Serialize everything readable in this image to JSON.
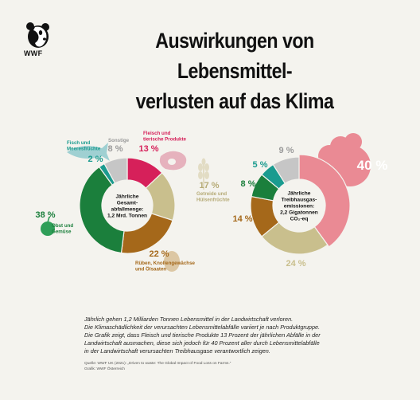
{
  "logo": {
    "text": "WWF"
  },
  "title": {
    "line1": "Auswirkungen von Lebensmittel-",
    "line2": "verlusten auf das Klima"
  },
  "colors": {
    "meat": "#d6205a",
    "grain": "#c9bf8d",
    "roots": "#a5681a",
    "fruit": "#1b7f3c",
    "fish": "#1a9b8f",
    "other": "#c6c6c6",
    "emissions_big": "#ea8a94",
    "background": "#f4f3ee"
  },
  "icons": [
    "panda-logo-icon",
    "fish-icon",
    "steak-icon",
    "wheat-icon",
    "apple-icon",
    "potato-icon",
    "emission-cloud-icon"
  ],
  "chart_data": [
    {
      "type": "pie",
      "center_label": "Jährliche Gesamt-abfallmenge: 1,2 Mrd. Tonnen",
      "center_lines": [
        "Jährliche",
        "Gesamt-",
        "abfallmenge:",
        "1,2 Mrd. Tonnen"
      ],
      "slices": [
        {
          "key": "meat",
          "name": "Fleisch und tierische Produkte",
          "name_lines": [
            "Fleisch und",
            "tierische Produkte"
          ],
          "value": 13,
          "label": "13 %"
        },
        {
          "key": "grain",
          "name": "Getreide und Hülsenfrüchte",
          "name_lines": [
            "Getreide und",
            "Hülsenfrüchte"
          ],
          "value": 17,
          "label": "17 %"
        },
        {
          "key": "roots",
          "name": "Rüben, Knollengewächse und Ölsaaten",
          "name_lines": [
            "Rüben, Knollengewächse",
            "und Ölsaaten"
          ],
          "value": 22,
          "label": "22 %"
        },
        {
          "key": "fruit",
          "name": "Obst und Gemüse",
          "name_lines": [
            "Obst und",
            "Gemüse"
          ],
          "value": 38,
          "label": "38 %"
        },
        {
          "key": "fish",
          "name": "Fisch und Meeresfrüchte",
          "name_lines": [
            "Fisch und",
            "Meeresfrüchte"
          ],
          "value": 2,
          "label": "2 %"
        },
        {
          "key": "other",
          "name": "Sonstige",
          "name_lines": [
            "Sonstige"
          ],
          "value": 8,
          "label": "8 %"
        }
      ]
    },
    {
      "type": "pie",
      "center_label": "Jährliche Treibhausgas-emissionen: 2,2 Gigatonnen CO₂-eq",
      "center_lines": [
        "Jährliche",
        "Treibhausgas-",
        "emissionen:",
        "2,2 Gigatonnen",
        "CO₂-eq"
      ],
      "slices": [
        {
          "key": "meat",
          "value": 40,
          "label": "40 %"
        },
        {
          "key": "grain",
          "value": 24,
          "label": "24 %"
        },
        {
          "key": "roots",
          "value": 14,
          "label": "14 %"
        },
        {
          "key": "fruit",
          "value": 8,
          "label": "8 %"
        },
        {
          "key": "fish",
          "value": 5,
          "label": "5 %"
        },
        {
          "key": "other",
          "value": 9,
          "label": "9 %"
        }
      ]
    }
  ],
  "description": {
    "line1": "Jährlich gehen 1,2 Milliarden Tonnen Lebensmittel in der Landwirtschaft verloren.",
    "line2": "Die Klimaschädlichkeit der verursachten Lebensmittelabfälle variiert je nach Produktgruppe.",
    "line3": "Die Grafik zeigt, dass Fleisch und tierische Produkte 13 Prozent  der jährlichen Abfälle in der",
    "line4": "Landwirtschaft ausmachen, diese sich jedoch für 40 Prozent aller durch Lebensmittelabfälle",
    "line5": "in der Landwirtschaft verursachten Treibhausgase verantwortlich zeigen."
  },
  "source": {
    "line1": "Quelle: WWF UK (2021): „Driven to waste: The Global Impact of Food Loss on Farms.“",
    "line2": "Grafik: WWF Österreich"
  }
}
